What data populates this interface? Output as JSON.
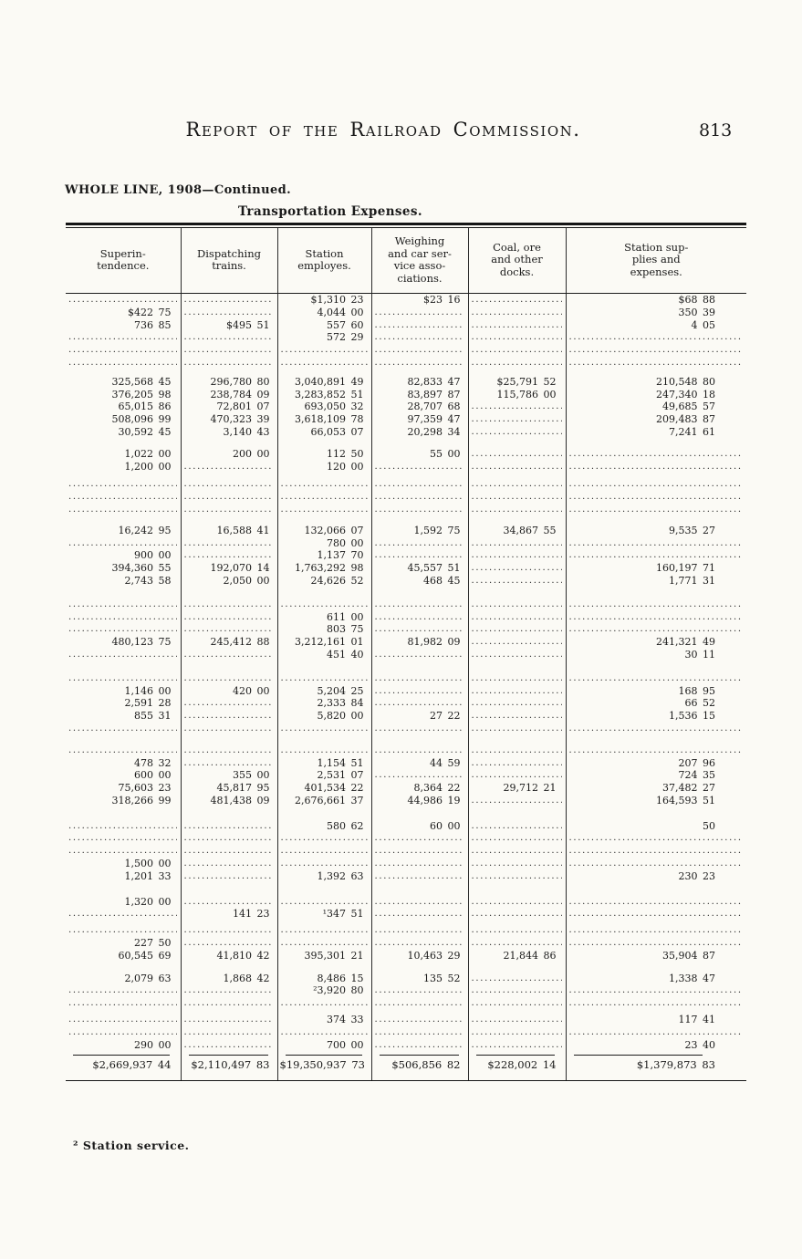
{
  "page": {
    "title": "Report of the Railroad Commission.",
    "page_number": "813",
    "caption_line1": "WHOLE LINE, 1908—Continued.",
    "caption_line2": "Transportation Expenses.",
    "footnote": "² Station service."
  },
  "table": {
    "columns": [
      [
        "Superin-",
        "tendence."
      ],
      [
        "Dispatching",
        "trains."
      ],
      [
        "Station",
        "employes."
      ],
      [
        "Weighing",
        "and car ser-",
        "vice asso-",
        "ciations."
      ],
      [
        "Coal, ore",
        "and other",
        "docks."
      ],
      [
        "Station sup-",
        "plies and",
        "expenses."
      ]
    ],
    "rows": [
      [
        "",
        "",
        "$1,310 23",
        "$23 16",
        "",
        "$68 88"
      ],
      [
        "$422 75",
        "",
        "4,044 00",
        "",
        "",
        "350 39"
      ],
      [
        "736 85",
        "$495 51",
        "557 60",
        "",
        "",
        "4 05"
      ],
      [
        "",
        "",
        "572 29",
        "",
        "",
        ""
      ],
      [
        "",
        "",
        "",
        "",
        "",
        ""
      ],
      [
        "",
        "",
        "",
        "",
        "",
        ""
      ],
      {
        "spacer": 7
      },
      [
        "325,568 45",
        "296,780 80",
        "3,040,891 49",
        "82,833 47",
        "$25,791 52",
        "210,548 80"
      ],
      [
        "376,205 98",
        "238,784 09",
        "3,283,852 51",
        "83,897 87",
        "115,786 00",
        "247,340 18"
      ],
      [
        "65,015 86",
        "72,801 07",
        "693,050 32",
        "28,707 68",
        "",
        "49,685 57"
      ],
      [
        "508,096 99",
        "470,323 39",
        "3,618,109 78",
        "97,359 47",
        "",
        "209,483 87"
      ],
      [
        "30,592 45",
        "3,140 43",
        "66,053 07",
        "20,298 34",
        "",
        "7,241 61"
      ],
      {
        "spacer": 10
      },
      [
        "1,022 00",
        "200 00",
        "112 50",
        "55 00",
        "",
        ""
      ],
      [
        "1,200 00",
        "",
        "120 00",
        "",
        "",
        ""
      ],
      {
        "spacer": 6
      },
      [
        "",
        "",
        "",
        "",
        "",
        ""
      ],
      [
        "",
        "",
        "",
        "",
        "",
        ""
      ],
      [
        "",
        "",
        "",
        "",
        "",
        ""
      ],
      {
        "spacer": 9
      },
      [
        "16,242 95",
        "16,588 41",
        "132,066 07",
        "1,592 75",
        "34,867 55",
        "9,535 27"
      ],
      [
        "",
        "",
        "780 00",
        "",
        "",
        ""
      ],
      [
        "900 00",
        "",
        "1,137 70",
        "",
        "",
        ""
      ],
      [
        "394,360 55",
        "192,070 14",
        "1,763,292 98",
        "45,557 51",
        "",
        "160,197 71"
      ],
      [
        "2,743 58",
        "2,050 00",
        "24,626 52",
        "468 45",
        "",
        "1,771 31"
      ],
      {
        "spacer": 12
      },
      [
        "",
        "",
        "",
        "",
        "",
        ""
      ],
      [
        "",
        "",
        "611 00",
        "",
        "",
        ""
      ],
      [
        "",
        "",
        "803 75",
        "",
        "",
        ""
      ],
      [
        "480,123 75",
        "245,412 88",
        "3,212,161 01",
        "81,982 09",
        "",
        "241,321 49"
      ],
      [
        "",
        "",
        "451 40",
        "",
        "",
        "30 11"
      ],
      {
        "spacer": 12
      },
      [
        "",
        "",
        "",
        "",
        "",
        ""
      ],
      [
        "1,146 00",
        "420 00",
        "5,204 25",
        "",
        "",
        "168 95"
      ],
      [
        "2,591 28",
        "",
        "2,333 84",
        "",
        "",
        "66 52"
      ],
      [
        "855 31",
        "",
        "5,820 00",
        "27 22",
        "",
        "1,536 15"
      ],
      [
        "",
        "",
        "",
        "",
        "",
        ""
      ],
      {
        "spacer": 10
      },
      [
        "",
        "",
        "",
        "",
        "",
        ""
      ],
      [
        "478 32",
        "",
        "1,154 51",
        "44 59",
        "",
        "207 96"
      ],
      [
        "600 00",
        "355 00",
        "2,531 07",
        "",
        "",
        "724 35"
      ],
      [
        "75,603 23",
        "45,817 95",
        "401,534 22",
        "8,364 22",
        "29,712 21",
        "37,482 27"
      ],
      [
        "318,266 99",
        "481,438 09",
        "2,676,661 37",
        "44,986 19",
        "",
        "164,593 51"
      ],
      {
        "spacer": 14
      },
      [
        "",
        "",
        "580 62",
        "60 00",
        "",
        "50"
      ],
      [
        "",
        "",
        "",
        "",
        "",
        ""
      ],
      [
        "",
        "",
        "",
        "",
        "",
        ""
      ],
      [
        "1,500 00",
        "",
        "",
        "",
        "",
        ""
      ],
      [
        "1,201 33",
        "",
        "1,392 63",
        "",
        "",
        "230 23"
      ],
      {
        "spacer": 14
      },
      [
        "1,320 00",
        "",
        "",
        "",
        "",
        ""
      ],
      [
        "",
        "141 23",
        "¹347 51",
        "",
        "",
        ""
      ],
      {
        "spacer": 4
      },
      [
        "",
        "",
        "",
        "",
        "",
        ""
      ],
      [
        "227 50",
        "",
        "",
        "",
        "",
        ""
      ],
      [
        "60,545 69",
        "41,810 42",
        "395,301 21",
        "10,463 29",
        "21,844 86",
        "35,904 87"
      ],
      {
        "spacer": 11
      },
      [
        "2,079 63",
        "1,868 42",
        "8,486 15",
        "135 52",
        "",
        "1,338 47"
      ],
      [
        "",
        "",
        "²3,920 80",
        "",
        "",
        ""
      ],
      [
        "",
        "",
        "",
        "",
        "",
        ""
      ],
      {
        "spacer": 4
      },
      [
        "",
        "",
        "374 33",
        "",
        "",
        "117 41"
      ],
      [
        "",
        "",
        "",
        "",
        "",
        ""
      ],
      [
        "290 00",
        "",
        "700 00",
        "",
        "",
        "23 40"
      ]
    ],
    "totals": [
      "$2,669,937 44",
      "$2,110,497 83",
      "$19,350,937 73",
      "$506,856 82",
      "$228,002 14",
      "$1,379,873 83"
    ]
  }
}
